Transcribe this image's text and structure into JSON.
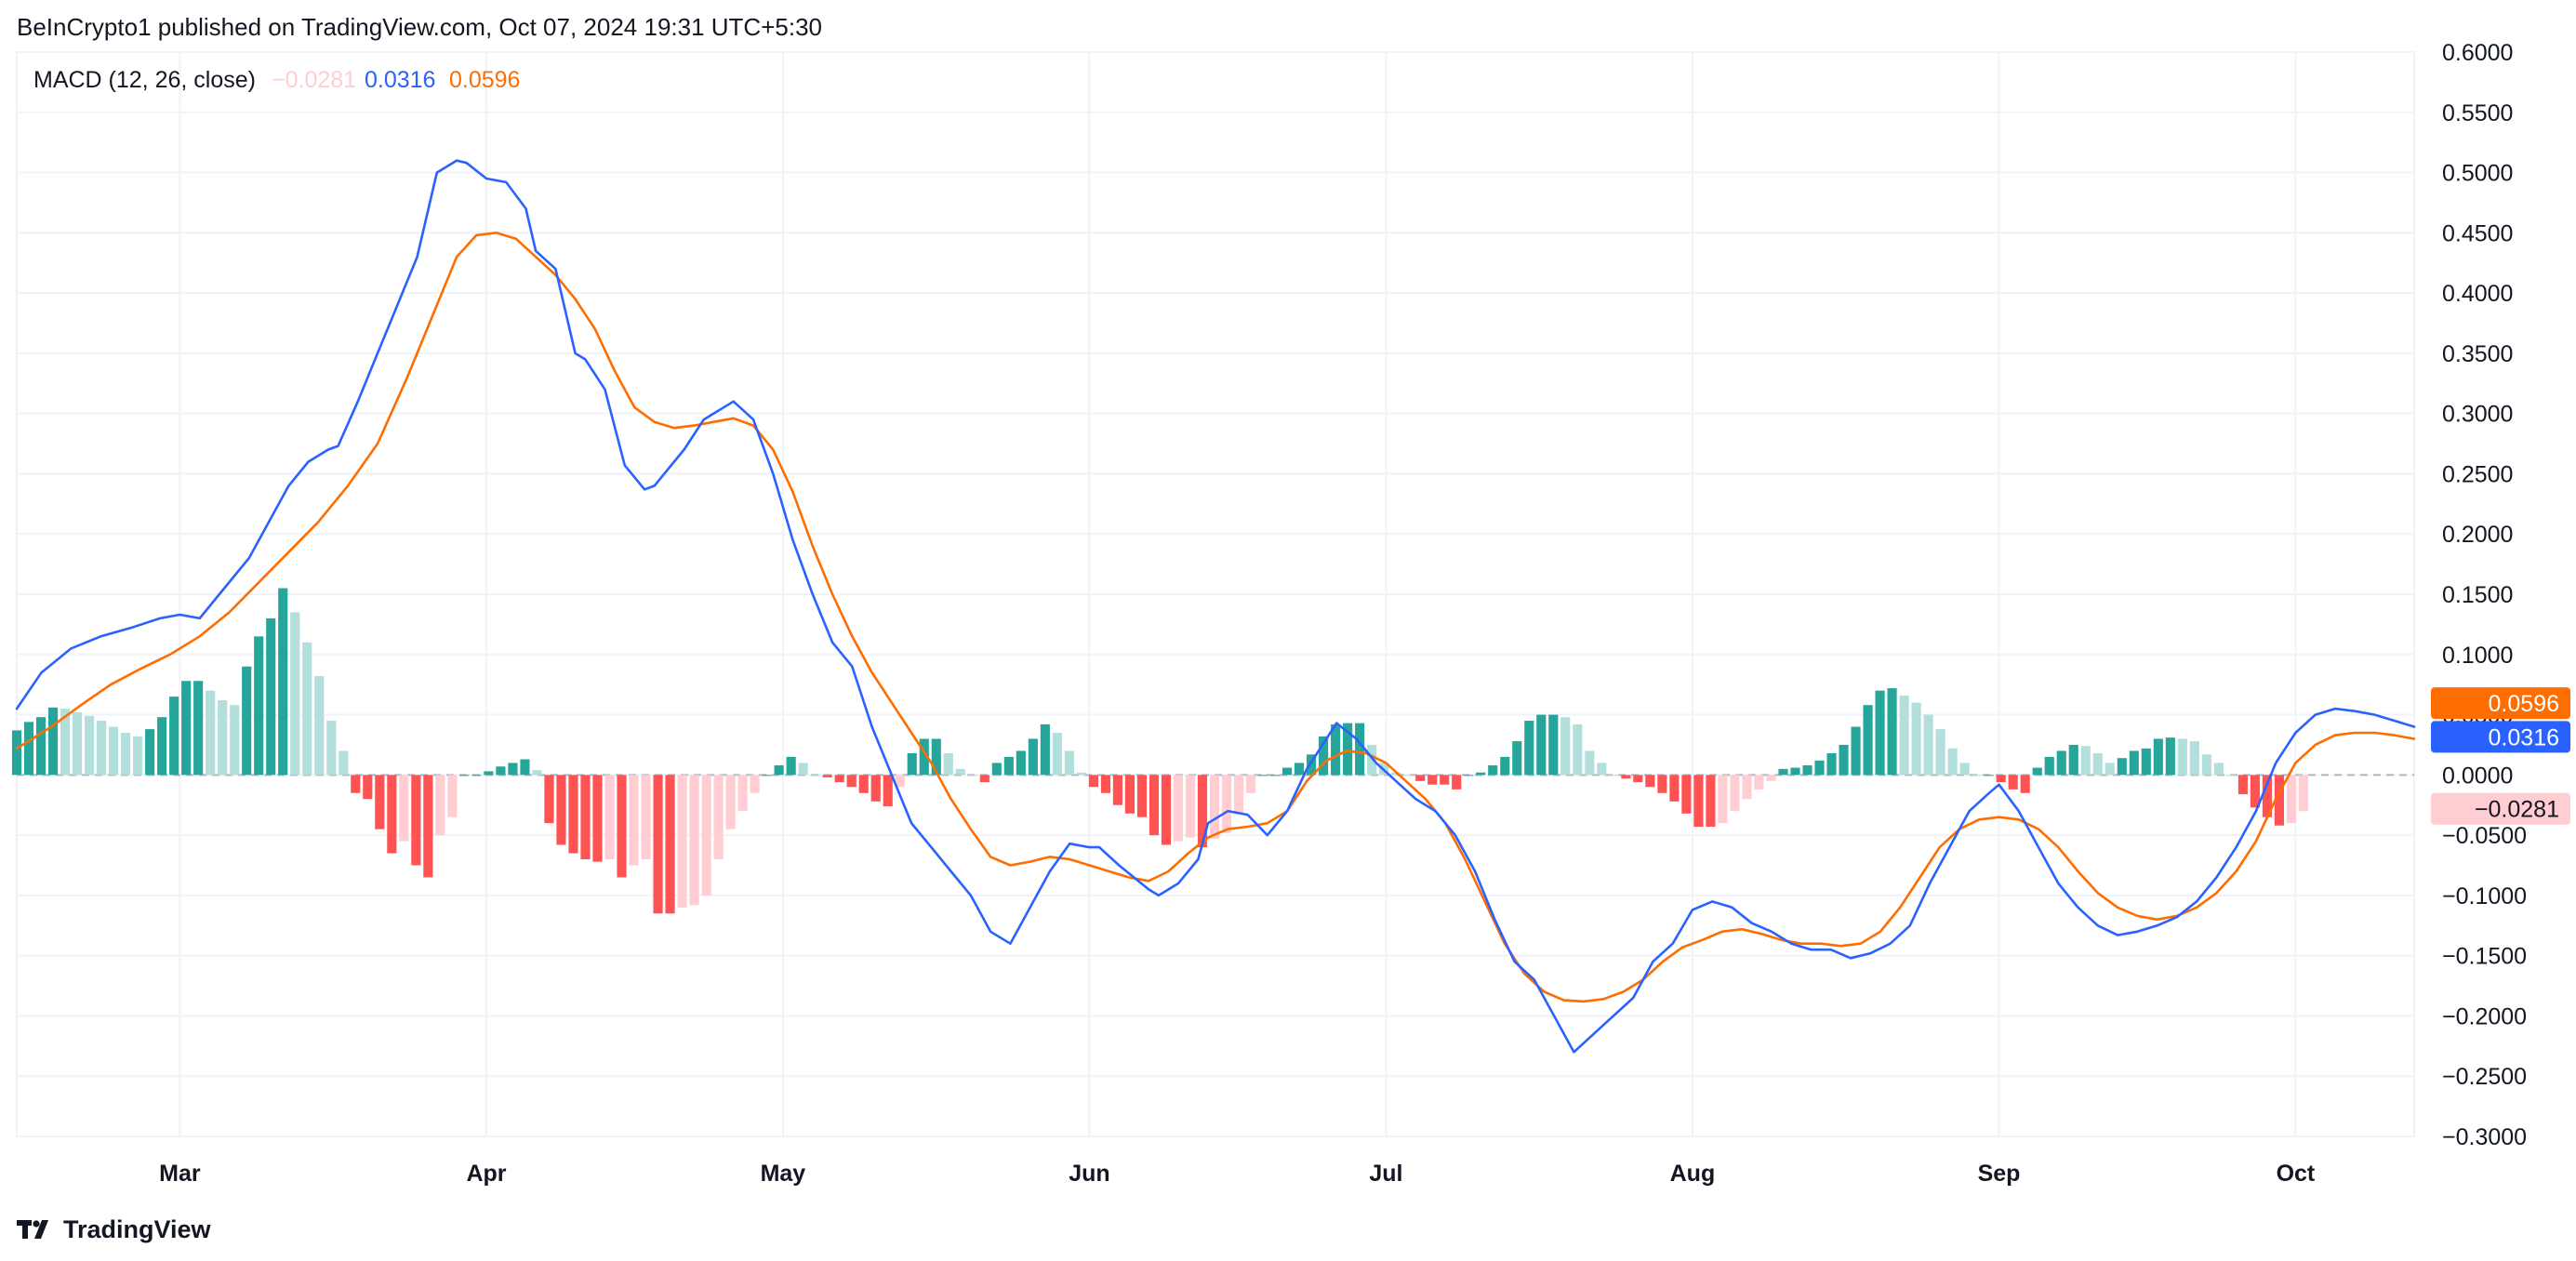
{
  "header": {
    "text": "BeInCrypto1 published on TradingView.com, Oct 07, 2024 19:31 UTC+5:30"
  },
  "footer": {
    "brand": "TradingView",
    "logo_icon": "tradingview-logo-icon"
  },
  "colors": {
    "macd_line": "#2962ff",
    "signal_line": "#ff6d00",
    "hist_pos_growing": "#26a69a",
    "hist_pos_falling": "#b2dfdb",
    "hist_neg_growing": "#ff5252",
    "hist_neg_falling": "#ffcdd2",
    "grid": "#f0f3fa",
    "zero_line": "#b2b5be"
  },
  "chart_data": {
    "type": "macd",
    "title": "MACD (12, 26, close)",
    "legend": {
      "label": "MACD (12, 26, close)",
      "histogram_value": "−0.0281",
      "macd_value": "0.0316",
      "signal_value": "0.0596"
    },
    "badges": {
      "signal": "0.0596",
      "macd": "0.0316",
      "histogram": "−0.0281"
    },
    "ylim": [
      -0.3,
      0.6
    ],
    "y_ticks": [
      0.6,
      0.55,
      0.5,
      0.45,
      0.4,
      0.35,
      0.3,
      0.25,
      0.2,
      0.15,
      0.1,
      0.05,
      0.0,
      -0.05,
      -0.1,
      -0.15,
      -0.2,
      -0.25,
      -0.3
    ],
    "y_tick_labels": [
      "0.6000",
      "0.5500",
      "0.5000",
      "0.4500",
      "0.4000",
      "0.3500",
      "0.3000",
      "0.2500",
      "0.2000",
      "0.1500",
      "0.1000",
      "0.0500",
      "0.0000",
      "−0.0500",
      "−0.1000",
      "−0.1500",
      "−0.2000",
      "−0.2500",
      "−0.3000"
    ],
    "x_range_days": [
      -16.5,
      226
    ],
    "x_ticks": [
      {
        "label": "Mar",
        "day": 0
      },
      {
        "label": "Apr",
        "day": 31
      },
      {
        "label": "May",
        "day": 61
      },
      {
        "label": "Jun",
        "day": 92
      },
      {
        "label": "Jul",
        "day": 122
      },
      {
        "label": "Aug",
        "day": 153
      },
      {
        "label": "Sep",
        "day": 184
      },
      {
        "label": "Oct",
        "day": 214
      }
    ],
    "macd_series": {
      "name": "MACD",
      "points": [
        [
          -16.5,
          0.055
        ],
        [
          -14,
          0.085
        ],
        [
          -11,
          0.105
        ],
        [
          -8,
          0.115
        ],
        [
          -5,
          0.122
        ],
        [
          -2,
          0.13
        ],
        [
          0,
          0.133
        ],
        [
          2,
          0.13
        ],
        [
          4,
          0.15
        ],
        [
          7,
          0.18
        ],
        [
          9,
          0.21
        ],
        [
          11,
          0.24
        ],
        [
          13,
          0.26
        ],
        [
          15,
          0.27
        ],
        [
          16,
          0.273
        ],
        [
          18,
          0.31
        ],
        [
          20,
          0.35
        ],
        [
          22,
          0.39
        ],
        [
          24,
          0.43
        ],
        [
          26,
          0.5
        ],
        [
          28,
          0.51
        ],
        [
          29,
          0.508
        ],
        [
          31,
          0.495
        ],
        [
          33,
          0.492
        ],
        [
          35,
          0.47
        ],
        [
          36,
          0.435
        ],
        [
          38,
          0.42
        ],
        [
          40,
          0.35
        ],
        [
          41,
          0.345
        ],
        [
          43,
          0.32
        ],
        [
          45,
          0.257
        ],
        [
          47,
          0.237
        ],
        [
          48,
          0.24
        ],
        [
          51,
          0.27
        ],
        [
          53,
          0.295
        ],
        [
          55,
          0.305
        ],
        [
          56,
          0.31
        ],
        [
          58,
          0.295
        ],
        [
          60,
          0.25
        ],
        [
          62,
          0.195
        ],
        [
          64,
          0.15
        ],
        [
          66,
          0.11
        ],
        [
          68,
          0.09
        ],
        [
          70,
          0.04
        ],
        [
          72,
          0.0
        ],
        [
          74,
          -0.04
        ],
        [
          76,
          -0.06
        ],
        [
          78,
          -0.08
        ],
        [
          80,
          -0.1
        ],
        [
          82,
          -0.13
        ],
        [
          84,
          -0.14
        ],
        [
          86,
          -0.11
        ],
        [
          88,
          -0.08
        ],
        [
          90,
          -0.057
        ],
        [
          92,
          -0.06
        ],
        [
          93,
          -0.06
        ],
        [
          95,
          -0.075
        ],
        [
          98,
          -0.095
        ],
        [
          99,
          -0.1
        ],
        [
          101,
          -0.09
        ],
        [
          103,
          -0.07
        ],
        [
          104,
          -0.04
        ],
        [
          106,
          -0.03
        ],
        [
          108,
          -0.033
        ],
        [
          110,
          -0.05
        ],
        [
          112,
          -0.03
        ],
        [
          114,
          0.005
        ],
        [
          117,
          0.043
        ],
        [
          119,
          0.03
        ],
        [
          121,
          0.01
        ],
        [
          123,
          -0.005
        ],
        [
          125,
          -0.02
        ],
        [
          127,
          -0.03
        ],
        [
          129,
          -0.05
        ],
        [
          131,
          -0.08
        ],
        [
          133,
          -0.12
        ],
        [
          135,
          -0.155
        ],
        [
          137,
          -0.17
        ],
        [
          139,
          -0.2
        ],
        [
          141,
          -0.23
        ],
        [
          143,
          -0.215
        ],
        [
          145,
          -0.2
        ],
        [
          147,
          -0.185
        ],
        [
          149,
          -0.155
        ],
        [
          151,
          -0.14
        ],
        [
          153,
          -0.112
        ],
        [
          155,
          -0.105
        ],
        [
          157,
          -0.11
        ],
        [
          159,
          -0.123
        ],
        [
          161,
          -0.13
        ],
        [
          163,
          -0.14
        ],
        [
          165,
          -0.145
        ],
        [
          167,
          -0.145
        ],
        [
          169,
          -0.152
        ],
        [
          171,
          -0.148
        ],
        [
          173,
          -0.14
        ],
        [
          175,
          -0.125
        ],
        [
          177,
          -0.09
        ],
        [
          179,
          -0.06
        ],
        [
          181,
          -0.03
        ],
        [
          183,
          -0.015
        ],
        [
          184,
          -0.008
        ],
        [
          186,
          -0.03
        ],
        [
          188,
          -0.06
        ],
        [
          190,
          -0.09
        ],
        [
          192,
          -0.11
        ],
        [
          194,
          -0.125
        ],
        [
          196,
          -0.133
        ],
        [
          198,
          -0.13
        ],
        [
          200,
          -0.125
        ],
        [
          202,
          -0.118
        ],
        [
          204,
          -0.105
        ],
        [
          206,
          -0.085
        ],
        [
          208,
          -0.06
        ],
        [
          210,
          -0.03
        ],
        [
          212,
          0.01
        ],
        [
          214,
          0.035
        ],
        [
          216,
          0.05
        ],
        [
          218,
          0.055
        ],
        [
          220,
          0.053
        ],
        [
          222,
          0.05
        ],
        [
          224,
          0.045
        ],
        [
          226,
          0.04
        ]
      ]
    },
    "signal_series": {
      "name": "Signal",
      "points": [
        [
          -16.5,
          0.022
        ],
        [
          -13,
          0.04
        ],
        [
          -10,
          0.058
        ],
        [
          -7,
          0.075
        ],
        [
          -4,
          0.088
        ],
        [
          -1,
          0.1
        ],
        [
          2,
          0.115
        ],
        [
          5,
          0.135
        ],
        [
          8,
          0.16
        ],
        [
          11,
          0.185
        ],
        [
          14,
          0.21
        ],
        [
          17,
          0.24
        ],
        [
          20,
          0.275
        ],
        [
          23,
          0.33
        ],
        [
          26,
          0.39
        ],
        [
          28,
          0.43
        ],
        [
          30,
          0.448
        ],
        [
          32,
          0.45
        ],
        [
          34,
          0.445
        ],
        [
          36,
          0.43
        ],
        [
          38,
          0.415
        ],
        [
          40,
          0.395
        ],
        [
          42,
          0.37
        ],
        [
          44,
          0.335
        ],
        [
          46,
          0.305
        ],
        [
          48,
          0.293
        ],
        [
          50,
          0.288
        ],
        [
          52,
          0.29
        ],
        [
          54,
          0.293
        ],
        [
          56,
          0.296
        ],
        [
          58,
          0.29
        ],
        [
          60,
          0.27
        ],
        [
          62,
          0.235
        ],
        [
          64,
          0.19
        ],
        [
          66,
          0.15
        ],
        [
          68,
          0.115
        ],
        [
          70,
          0.085
        ],
        [
          72,
          0.06
        ],
        [
          74,
          0.035
        ],
        [
          76,
          0.01
        ],
        [
          78,
          -0.02
        ],
        [
          80,
          -0.045
        ],
        [
          82,
          -0.068
        ],
        [
          84,
          -0.075
        ],
        [
          86,
          -0.072
        ],
        [
          88,
          -0.068
        ],
        [
          90,
          -0.07
        ],
        [
          92,
          -0.075
        ],
        [
          94,
          -0.08
        ],
        [
          96,
          -0.085
        ],
        [
          98,
          -0.088
        ],
        [
          100,
          -0.08
        ],
        [
          102,
          -0.065
        ],
        [
          104,
          -0.052
        ],
        [
          106,
          -0.045
        ],
        [
          108,
          -0.043
        ],
        [
          110,
          -0.04
        ],
        [
          112,
          -0.03
        ],
        [
          114,
          -0.005
        ],
        [
          116,
          0.012
        ],
        [
          118,
          0.02
        ],
        [
          120,
          0.018
        ],
        [
          122,
          0.01
        ],
        [
          124,
          -0.005
        ],
        [
          126,
          -0.02
        ],
        [
          128,
          -0.04
        ],
        [
          130,
          -0.07
        ],
        [
          132,
          -0.105
        ],
        [
          134,
          -0.14
        ],
        [
          136,
          -0.165
        ],
        [
          138,
          -0.18
        ],
        [
          140,
          -0.187
        ],
        [
          142,
          -0.188
        ],
        [
          144,
          -0.186
        ],
        [
          146,
          -0.18
        ],
        [
          148,
          -0.17
        ],
        [
          150,
          -0.155
        ],
        [
          152,
          -0.143
        ],
        [
          154,
          -0.137
        ],
        [
          156,
          -0.13
        ],
        [
          158,
          -0.128
        ],
        [
          160,
          -0.132
        ],
        [
          162,
          -0.137
        ],
        [
          164,
          -0.14
        ],
        [
          166,
          -0.14
        ],
        [
          168,
          -0.142
        ],
        [
          170,
          -0.14
        ],
        [
          172,
          -0.13
        ],
        [
          174,
          -0.11
        ],
        [
          176,
          -0.085
        ],
        [
          178,
          -0.06
        ],
        [
          180,
          -0.045
        ],
        [
          182,
          -0.037
        ],
        [
          184,
          -0.035
        ],
        [
          186,
          -0.037
        ],
        [
          188,
          -0.045
        ],
        [
          190,
          -0.06
        ],
        [
          192,
          -0.08
        ],
        [
          194,
          -0.098
        ],
        [
          196,
          -0.11
        ],
        [
          198,
          -0.117
        ],
        [
          200,
          -0.12
        ],
        [
          202,
          -0.117
        ],
        [
          204,
          -0.11
        ],
        [
          206,
          -0.098
        ],
        [
          208,
          -0.08
        ],
        [
          210,
          -0.055
        ],
        [
          212,
          -0.02
        ],
        [
          214,
          0.01
        ],
        [
          216,
          0.025
        ],
        [
          218,
          0.033
        ],
        [
          220,
          0.035
        ],
        [
          222,
          0.035
        ],
        [
          224,
          0.033
        ],
        [
          226,
          0.03
        ]
      ]
    },
    "histogram": {
      "name": "Histogram",
      "values": [
        0.037,
        0.044,
        0.048,
        0.056,
        0.055,
        0.052,
        0.049,
        0.045,
        0.04,
        0.035,
        0.032,
        0.038,
        0.048,
        0.065,
        0.078,
        0.078,
        0.07,
        0.062,
        0.058,
        0.09,
        0.115,
        0.13,
        0.155,
        0.135,
        0.11,
        0.082,
        0.045,
        0.02,
        -0.015,
        -0.02,
        -0.045,
        -0.065,
        -0.055,
        -0.075,
        -0.085,
        -0.05,
        -0.035,
        0.0,
        0.0,
        0.003,
        0.007,
        0.01,
        0.013,
        0.004,
        -0.04,
        -0.058,
        -0.065,
        -0.07,
        -0.072,
        -0.07,
        -0.085,
        -0.075,
        -0.07,
        -0.115,
        -0.115,
        -0.11,
        -0.108,
        -0.1,
        -0.07,
        -0.045,
        -0.03,
        -0.015,
        0.0,
        0.008,
        0.015,
        0.01,
        0.0,
        -0.002,
        -0.006,
        -0.01,
        -0.015,
        -0.022,
        -0.026,
        -0.01,
        0.018,
        0.03,
        0.03,
        0.018,
        0.005,
        0.0,
        -0.006,
        0.01,
        0.015,
        0.02,
        0.03,
        0.042,
        0.035,
        0.02,
        0.002,
        -0.01,
        -0.015,
        -0.025,
        -0.032,
        -0.035,
        -0.05,
        -0.058,
        -0.055,
        -0.052,
        -0.06,
        -0.053,
        -0.048,
        -0.032,
        -0.015,
        0.0,
        0.0,
        0.006,
        0.01,
        0.017,
        0.032,
        0.042,
        0.043,
        0.043,
        0.025,
        0.01,
        0.002,
        0.0,
        -0.005,
        -0.008,
        -0.008,
        -0.012,
        0.0,
        0.002,
        0.008,
        0.015,
        0.028,
        0.045,
        0.05,
        0.05,
        0.048,
        0.042,
        0.02,
        0.01,
        0.0,
        -0.003,
        -0.006,
        -0.01,
        -0.015,
        -0.022,
        -0.032,
        -0.043,
        -0.043,
        -0.04,
        -0.03,
        -0.02,
        -0.012,
        -0.005,
        0.005,
        0.006,
        0.008,
        0.012,
        0.018,
        0.025,
        0.04,
        0.058,
        0.07,
        0.072,
        0.066,
        0.06,
        0.05,
        0.038,
        0.022,
        0.01,
        0.0,
        0.0,
        -0.006,
        -0.012,
        -0.015,
        0.006,
        0.015,
        0.02,
        0.025,
        0.024,
        0.018,
        0.01,
        0.014,
        0.02,
        0.022,
        0.03,
        0.031,
        0.03,
        0.028,
        0.017,
        0.01,
        0.0,
        -0.016,
        -0.027,
        -0.035,
        -0.042,
        -0.04,
        -0.03
      ]
    }
  }
}
